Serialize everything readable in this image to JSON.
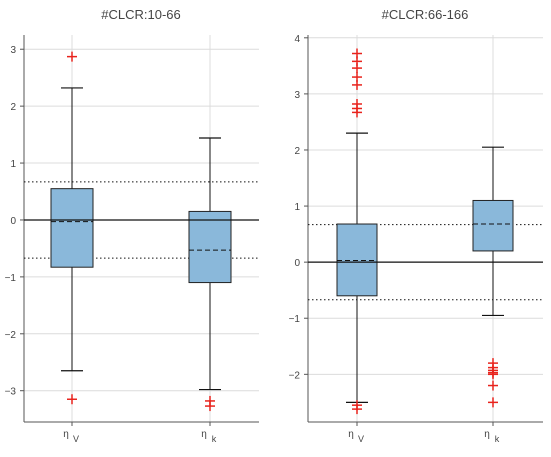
{
  "chart_data": [
    {
      "type": "box",
      "title": "#CLCR:10-66",
      "ylim": [
        -3.55,
        3.25
      ],
      "yticks": [
        -3,
        -2,
        -1,
        0,
        1,
        2,
        3
      ],
      "reference_lines": {
        "solid": 0,
        "dotted": [
          0.67,
          -0.67
        ]
      },
      "categories": [
        {
          "name": "η",
          "sub": "V"
        },
        {
          "name": "η",
          "sub": "k"
        }
      ],
      "boxes": [
        {
          "q1": -0.83,
          "median": -0.03,
          "q3": 0.55,
          "whisker_low": -2.65,
          "whisker_high": 2.32,
          "outliers": [
            2.87,
            -3.15
          ]
        },
        {
          "q1": -1.1,
          "median": -0.53,
          "q3": 0.15,
          "whisker_low": -2.98,
          "whisker_high": 1.44,
          "outliers": [
            -3.18,
            -3.27
          ]
        }
      ],
      "colors": {
        "box_fill": "#8ab8da",
        "outlier": "#e8231c",
        "grid": "#dcdcdc"
      }
    },
    {
      "type": "box",
      "title": "#CLCR:66-166",
      "ylim": [
        -2.85,
        4.05
      ],
      "yticks": [
        -2,
        -1,
        0,
        1,
        2,
        3,
        4
      ],
      "reference_lines": {
        "solid": 0,
        "dotted": [
          0.67,
          -0.67
        ]
      },
      "categories": [
        {
          "name": "η",
          "sub": "V"
        },
        {
          "name": "η",
          "sub": "k"
        }
      ],
      "boxes": [
        {
          "q1": -0.6,
          "median": 0.03,
          "q3": 0.68,
          "whisker_low": -2.5,
          "whisker_high": 2.3,
          "outliers": [
            3.72,
            3.58,
            3.46,
            3.3,
            3.16,
            2.82,
            2.74,
            2.67,
            -2.55,
            -2.62
          ]
        },
        {
          "q1": 0.2,
          "median": 0.68,
          "q3": 1.1,
          "whisker_low": -0.95,
          "whisker_high": 2.05,
          "outliers": [
            -1.8,
            -1.88,
            -1.93,
            -1.97,
            -2.0,
            -2.2,
            -2.5
          ]
        }
      ],
      "colors": {
        "box_fill": "#8ab8da",
        "outlier": "#e8231c",
        "grid": "#dcdcdc"
      }
    }
  ]
}
